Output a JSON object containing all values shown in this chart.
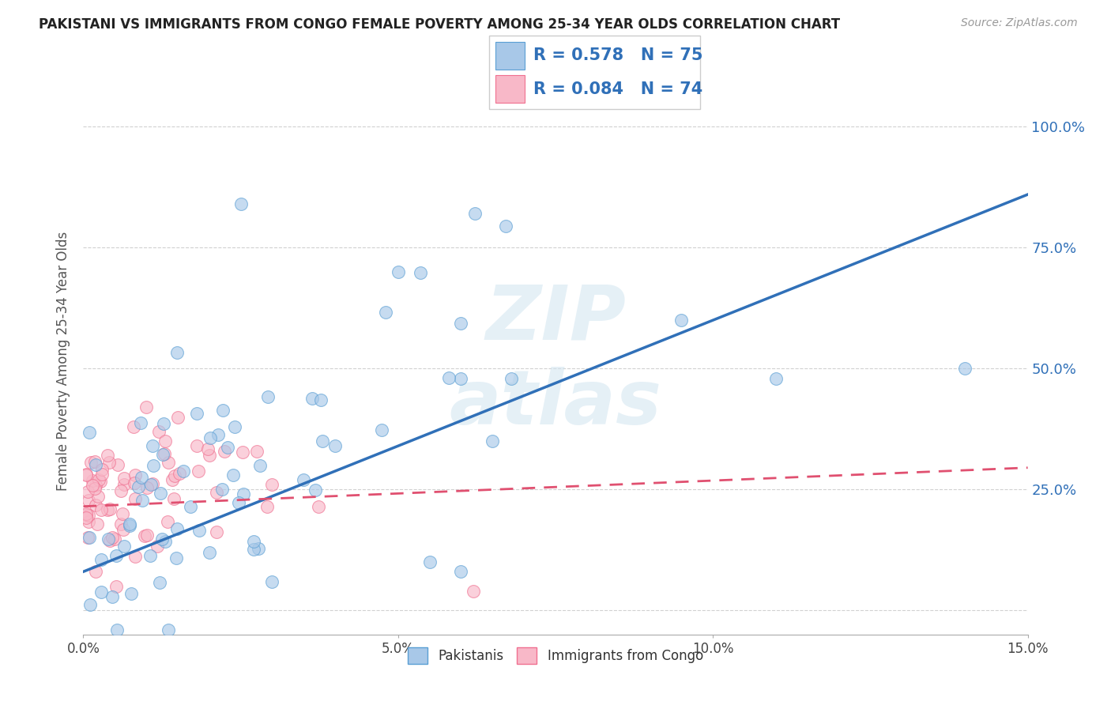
{
  "title": "PAKISTANI VS IMMIGRANTS FROM CONGO FEMALE POVERTY AMONG 25-34 YEAR OLDS CORRELATION CHART",
  "source": "Source: ZipAtlas.com",
  "ylabel": "Female Poverty Among 25-34 Year Olds",
  "xlim": [
    0,
    0.15
  ],
  "ylim": [
    -0.05,
    1.08
  ],
  "xticks": [
    0.0,
    0.05,
    0.1,
    0.15
  ],
  "xticklabels": [
    "0.0%",
    "5.0%",
    "10.0%",
    "15.0%"
  ],
  "yticks": [
    0.0,
    0.25,
    0.5,
    0.75,
    1.0
  ],
  "yticklabels": [
    "",
    "25.0%",
    "50.0%",
    "75.0%",
    "100.0%"
  ],
  "blue_color": "#a8c8e8",
  "blue_edge_color": "#5a9fd4",
  "pink_color": "#f8b8c8",
  "pink_edge_color": "#f07090",
  "blue_R": 0.578,
  "blue_N": 75,
  "pink_R": 0.084,
  "pink_N": 74,
  "blue_line_color": "#3070b8",
  "pink_line_color": "#e05070",
  "grid_color": "#cccccc",
  "watermark_color": "#d0e4f0",
  "legend_blue_label": "Pakistanis",
  "legend_pink_label": "Immigrants from Congo",
  "blue_line_x0": 0.0,
  "blue_line_y0": 0.08,
  "blue_line_x1": 0.15,
  "blue_line_y1": 0.86,
  "pink_line_x0": 0.0,
  "pink_line_y0": 0.215,
  "pink_line_x1": 0.15,
  "pink_line_y1": 0.295
}
